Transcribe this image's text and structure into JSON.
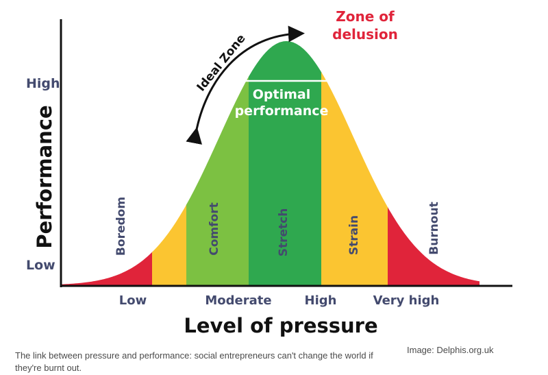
{
  "axes": {
    "ylabel": "Performance",
    "xlabel": "Level of pressure",
    "y_ticks": [
      "High",
      "Low"
    ],
    "x_ticks": [
      "Low",
      "Moderate",
      "High",
      "Very high"
    ]
  },
  "zones": {
    "boredom": "Boredom",
    "comfort": "Comfort",
    "stretch": "Stretch",
    "strain": "Strain",
    "burnout": "Burnout"
  },
  "annotations": {
    "ideal_zone": "Ideal Zone",
    "optimal_line1": "Optimal",
    "optimal_line2": "performance",
    "delusion_line1": "Zone of",
    "delusion_line2": "delusion"
  },
  "colors": {
    "red": "#e0243a",
    "yellow": "#fbc531",
    "light_green": "#7cc142",
    "dark_green": "#2fa84f",
    "axis_label": "#434a6e",
    "annotation_red": "#e0243a"
  },
  "caption": "The link between pressure and performance: social entrepreneurs can't change the world if they're burnt out.",
  "credit": "Image: Delphis.org.uk"
}
